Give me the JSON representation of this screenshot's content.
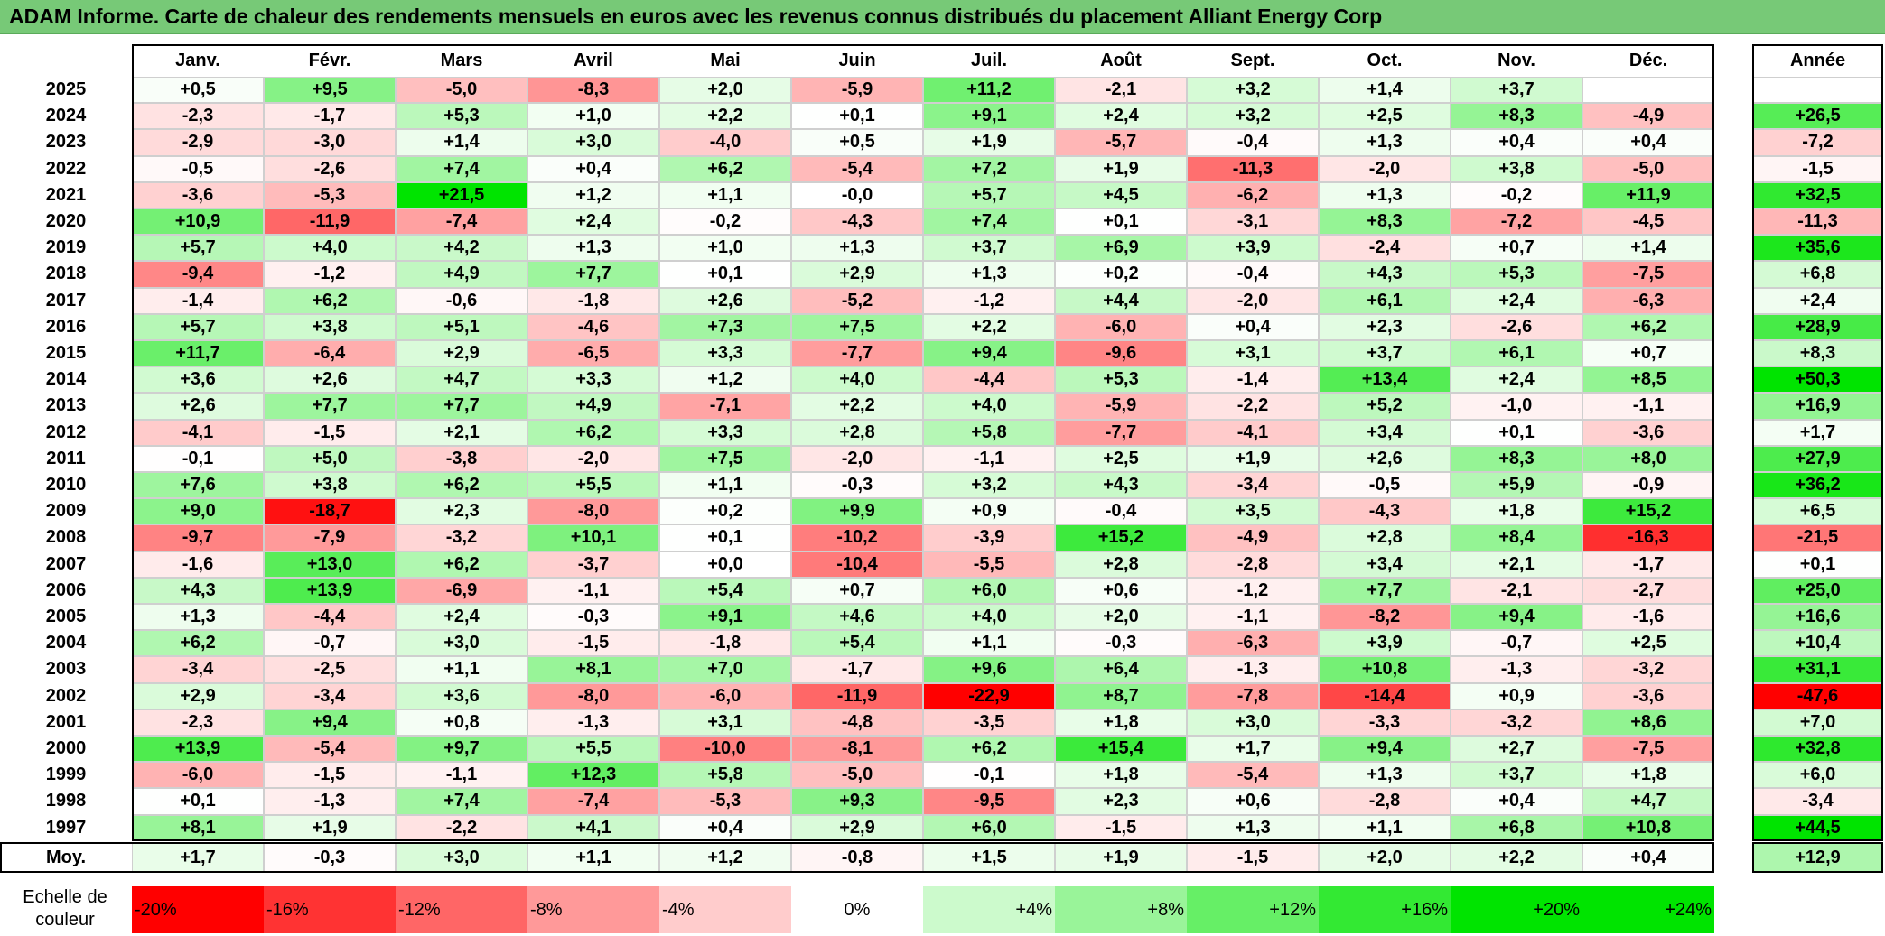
{
  "title": "ADAM Informe. Carte de chaleur des rendements mensuels en euros avec les revenus connus distribués du placement Alliant Energy Corp",
  "chart_data": {
    "type": "heatmap",
    "title": "ADAM Informe. Carte de chaleur des rendements mensuels en euros avec les revenus connus distribués du placement Alliant Energy Corp",
    "months": [
      "Janv.",
      "Févr.",
      "Mars",
      "Avril",
      "Mai",
      "Juin",
      "Juil.",
      "Août",
      "Sept.",
      "Oct.",
      "Nov.",
      "Déc."
    ],
    "annual_label": "Année",
    "avg_label": "Moy.",
    "rows": [
      {
        "year": "2025",
        "values": [
          "+0,5",
          "+9,5",
          "-5,0",
          "-8,3",
          "+2,0",
          "-5,9",
          "+11,2",
          "-2,1",
          "+3,2",
          "+1,4",
          "+3,7",
          ""
        ],
        "annual": ""
      },
      {
        "year": "2024",
        "values": [
          "-2,3",
          "-1,7",
          "+5,3",
          "+1,0",
          "+2,2",
          "+0,1",
          "+9,1",
          "+2,4",
          "+3,2",
          "+2,5",
          "+8,3",
          "-4,9"
        ],
        "annual": "+26,5"
      },
      {
        "year": "2023",
        "values": [
          "-2,9",
          "-3,0",
          "+1,4",
          "+3,0",
          "-4,0",
          "+0,5",
          "+1,9",
          "-5,7",
          "-0,4",
          "+1,3",
          "+0,4",
          "+0,4"
        ],
        "annual": "-7,2"
      },
      {
        "year": "2022",
        "values": [
          "-0,5",
          "-2,6",
          "+7,4",
          "+0,4",
          "+6,2",
          "-5,4",
          "+7,2",
          "+1,9",
          "-11,3",
          "-2,0",
          "+3,8",
          "-5,0"
        ],
        "annual": "-1,5"
      },
      {
        "year": "2021",
        "values": [
          "-3,6",
          "-5,3",
          "+21,5",
          "+1,2",
          "+1,1",
          "-0,0",
          "+5,7",
          "+4,5",
          "-6,2",
          "+1,3",
          "-0,2",
          "+11,9"
        ],
        "annual": "+32,5"
      },
      {
        "year": "2020",
        "values": [
          "+10,9",
          "-11,9",
          "-7,4",
          "+2,4",
          "-0,2",
          "-4,3",
          "+7,4",
          "+0,1",
          "-3,1",
          "+8,3",
          "-7,2",
          "-4,5"
        ],
        "annual": "-11,3"
      },
      {
        "year": "2019",
        "values": [
          "+5,7",
          "+4,0",
          "+4,2",
          "+1,3",
          "+1,0",
          "+1,3",
          "+3,7",
          "+6,9",
          "+3,9",
          "-2,4",
          "+0,7",
          "+1,4"
        ],
        "annual": "+35,6"
      },
      {
        "year": "2018",
        "values": [
          "-9,4",
          "-1,2",
          "+4,9",
          "+7,7",
          "+0,1",
          "+2,9",
          "+1,3",
          "+0,2",
          "-0,4",
          "+4,3",
          "+5,3",
          "-7,5"
        ],
        "annual": "+6,8"
      },
      {
        "year": "2017",
        "values": [
          "-1,4",
          "+6,2",
          "-0,6",
          "-1,8",
          "+2,6",
          "-5,2",
          "-1,2",
          "+4,4",
          "-2,0",
          "+6,1",
          "+2,4",
          "-6,3"
        ],
        "annual": "+2,4"
      },
      {
        "year": "2016",
        "values": [
          "+5,7",
          "+3,8",
          "+5,1",
          "-4,6",
          "+7,3",
          "+7,5",
          "+2,2",
          "-6,0",
          "+0,4",
          "+2,3",
          "-2,6",
          "+6,2"
        ],
        "annual": "+28,9"
      },
      {
        "year": "2015",
        "values": [
          "+11,7",
          "-6,4",
          "+2,9",
          "-6,5",
          "+3,3",
          "-7,7",
          "+9,4",
          "-9,6",
          "+3,1",
          "+3,7",
          "+6,1",
          "+0,7"
        ],
        "annual": "+8,3"
      },
      {
        "year": "2014",
        "values": [
          "+3,6",
          "+2,6",
          "+4,7",
          "+3,3",
          "+1,2",
          "+4,0",
          "-4,4",
          "+5,3",
          "-1,4",
          "+13,4",
          "+2,4",
          "+8,5"
        ],
        "annual": "+50,3"
      },
      {
        "year": "2013",
        "values": [
          "+2,6",
          "+7,7",
          "+7,7",
          "+4,9",
          "-7,1",
          "+2,2",
          "+4,0",
          "-5,9",
          "-2,2",
          "+5,2",
          "-1,0",
          "-1,1"
        ],
        "annual": "+16,9"
      },
      {
        "year": "2012",
        "values": [
          "-4,1",
          "-1,5",
          "+2,1",
          "+6,2",
          "+3,3",
          "+2,8",
          "+5,8",
          "-7,7",
          "-4,1",
          "+3,4",
          "+0,1",
          "-3,6"
        ],
        "annual": "+1,7"
      },
      {
        "year": "2011",
        "values": [
          "-0,1",
          "+5,0",
          "-3,8",
          "-2,0",
          "+7,5",
          "-2,0",
          "-1,1",
          "+2,5",
          "+1,9",
          "+2,6",
          "+8,3",
          "+8,0"
        ],
        "annual": "+27,9"
      },
      {
        "year": "2010",
        "values": [
          "+7,6",
          "+3,8",
          "+6,2",
          "+5,5",
          "+1,1",
          "-0,3",
          "+3,2",
          "+4,3",
          "-3,4",
          "-0,5",
          "+5,9",
          "-0,9"
        ],
        "annual": "+36,2"
      },
      {
        "year": "2009",
        "values": [
          "+9,0",
          "-18,7",
          "+2,3",
          "-8,0",
          "+0,2",
          "+9,9",
          "+0,9",
          "-0,4",
          "+3,5",
          "-4,3",
          "+1,8",
          "+15,2"
        ],
        "annual": "+6,5"
      },
      {
        "year": "2008",
        "values": [
          "-9,7",
          "-7,9",
          "-3,2",
          "+10,1",
          "+0,1",
          "-10,2",
          "-3,9",
          "+15,2",
          "-4,9",
          "+2,8",
          "+8,4",
          "-16,3"
        ],
        "annual": "-21,5"
      },
      {
        "year": "2007",
        "values": [
          "-1,6",
          "+13,0",
          "+6,2",
          "-3,7",
          "+0,0",
          "-10,4",
          "-5,5",
          "+2,8",
          "-2,8",
          "+3,4",
          "+2,1",
          "-1,7"
        ],
        "annual": "+0,1"
      },
      {
        "year": "2006",
        "values": [
          "+4,3",
          "+13,9",
          "-6,9",
          "-1,1",
          "+5,4",
          "+0,7",
          "+6,0",
          "+0,6",
          "-1,2",
          "+7,7",
          "-2,1",
          "-2,7"
        ],
        "annual": "+25,0"
      },
      {
        "year": "2005",
        "values": [
          "+1,3",
          "-4,4",
          "+2,4",
          "-0,3",
          "+9,1",
          "+4,6",
          "+4,0",
          "+2,0",
          "-1,1",
          "-8,2",
          "+9,4",
          "-1,6"
        ],
        "annual": "+16,6"
      },
      {
        "year": "2004",
        "values": [
          "+6,2",
          "-0,7",
          "+3,0",
          "-1,5",
          "-1,8",
          "+5,4",
          "+1,1",
          "-0,3",
          "-6,3",
          "+3,9",
          "-0,7",
          "+2,5"
        ],
        "annual": "+10,4"
      },
      {
        "year": "2003",
        "values": [
          "-3,4",
          "-2,5",
          "+1,1",
          "+8,1",
          "+7,0",
          "-1,7",
          "+9,6",
          "+6,4",
          "-1,3",
          "+10,8",
          "-1,3",
          "-3,2"
        ],
        "annual": "+31,1"
      },
      {
        "year": "2002",
        "values": [
          "+2,9",
          "-3,4",
          "+3,6",
          "-8,0",
          "-6,0",
          "-11,9",
          "-22,9",
          "+8,7",
          "-7,8",
          "-14,4",
          "+0,9",
          "-3,6"
        ],
        "annual": "-47,6"
      },
      {
        "year": "2001",
        "values": [
          "-2,3",
          "+9,4",
          "+0,8",
          "-1,3",
          "+3,1",
          "-4,8",
          "-3,5",
          "+1,8",
          "+3,0",
          "-3,3",
          "-3,2",
          "+8,6"
        ],
        "annual": "+7,0"
      },
      {
        "year": "2000",
        "values": [
          "+13,9",
          "-5,4",
          "+9,7",
          "+5,5",
          "-10,0",
          "-8,1",
          "+6,2",
          "+15,4",
          "+1,7",
          "+9,4",
          "+2,7",
          "-7,5"
        ],
        "annual": "+32,8"
      },
      {
        "year": "1999",
        "values": [
          "-6,0",
          "-1,5",
          "-1,1",
          "+12,3",
          "+5,8",
          "-5,0",
          "-0,1",
          "+1,8",
          "-5,4",
          "+1,3",
          "+3,7",
          "+1,8"
        ],
        "annual": "+6,0"
      },
      {
        "year": "1998",
        "values": [
          "+0,1",
          "-1,3",
          "+7,4",
          "-7,4",
          "-5,3",
          "+9,3",
          "-9,5",
          "+2,3",
          "+0,6",
          "-2,8",
          "+0,4",
          "+4,7"
        ],
        "annual": "-3,4"
      },
      {
        "year": "1997",
        "values": [
          "+8,1",
          "+1,9",
          "-2,2",
          "+4,1",
          "+0,4",
          "+2,9",
          "+6,0",
          "-1,5",
          "+1,3",
          "+1,1",
          "+6,8",
          "+10,8"
        ],
        "annual": "+44,5"
      }
    ],
    "averages": [
      "+1,7",
      "-0,3",
      "+3,0",
      "+1,1",
      "+1,2",
      "-0,8",
      "+1,5",
      "+1,9",
      "-1,5",
      "+2,0",
      "+2,2",
      "+0,4"
    ],
    "average_annual": "+12,9",
    "legend": {
      "title": "Echelle de couleur",
      "steps": [
        "-20%",
        "-16%",
        "-12%",
        "-8%",
        "-4%",
        "0%",
        "+4%",
        "+8%",
        "+12%",
        "+16%",
        "+20%",
        "+24%"
      ]
    },
    "colors": {
      "negative_max": "#ff0000",
      "neutral": "#ffffff",
      "positive_max": "#00e400",
      "title_bar": "#77c977"
    }
  }
}
